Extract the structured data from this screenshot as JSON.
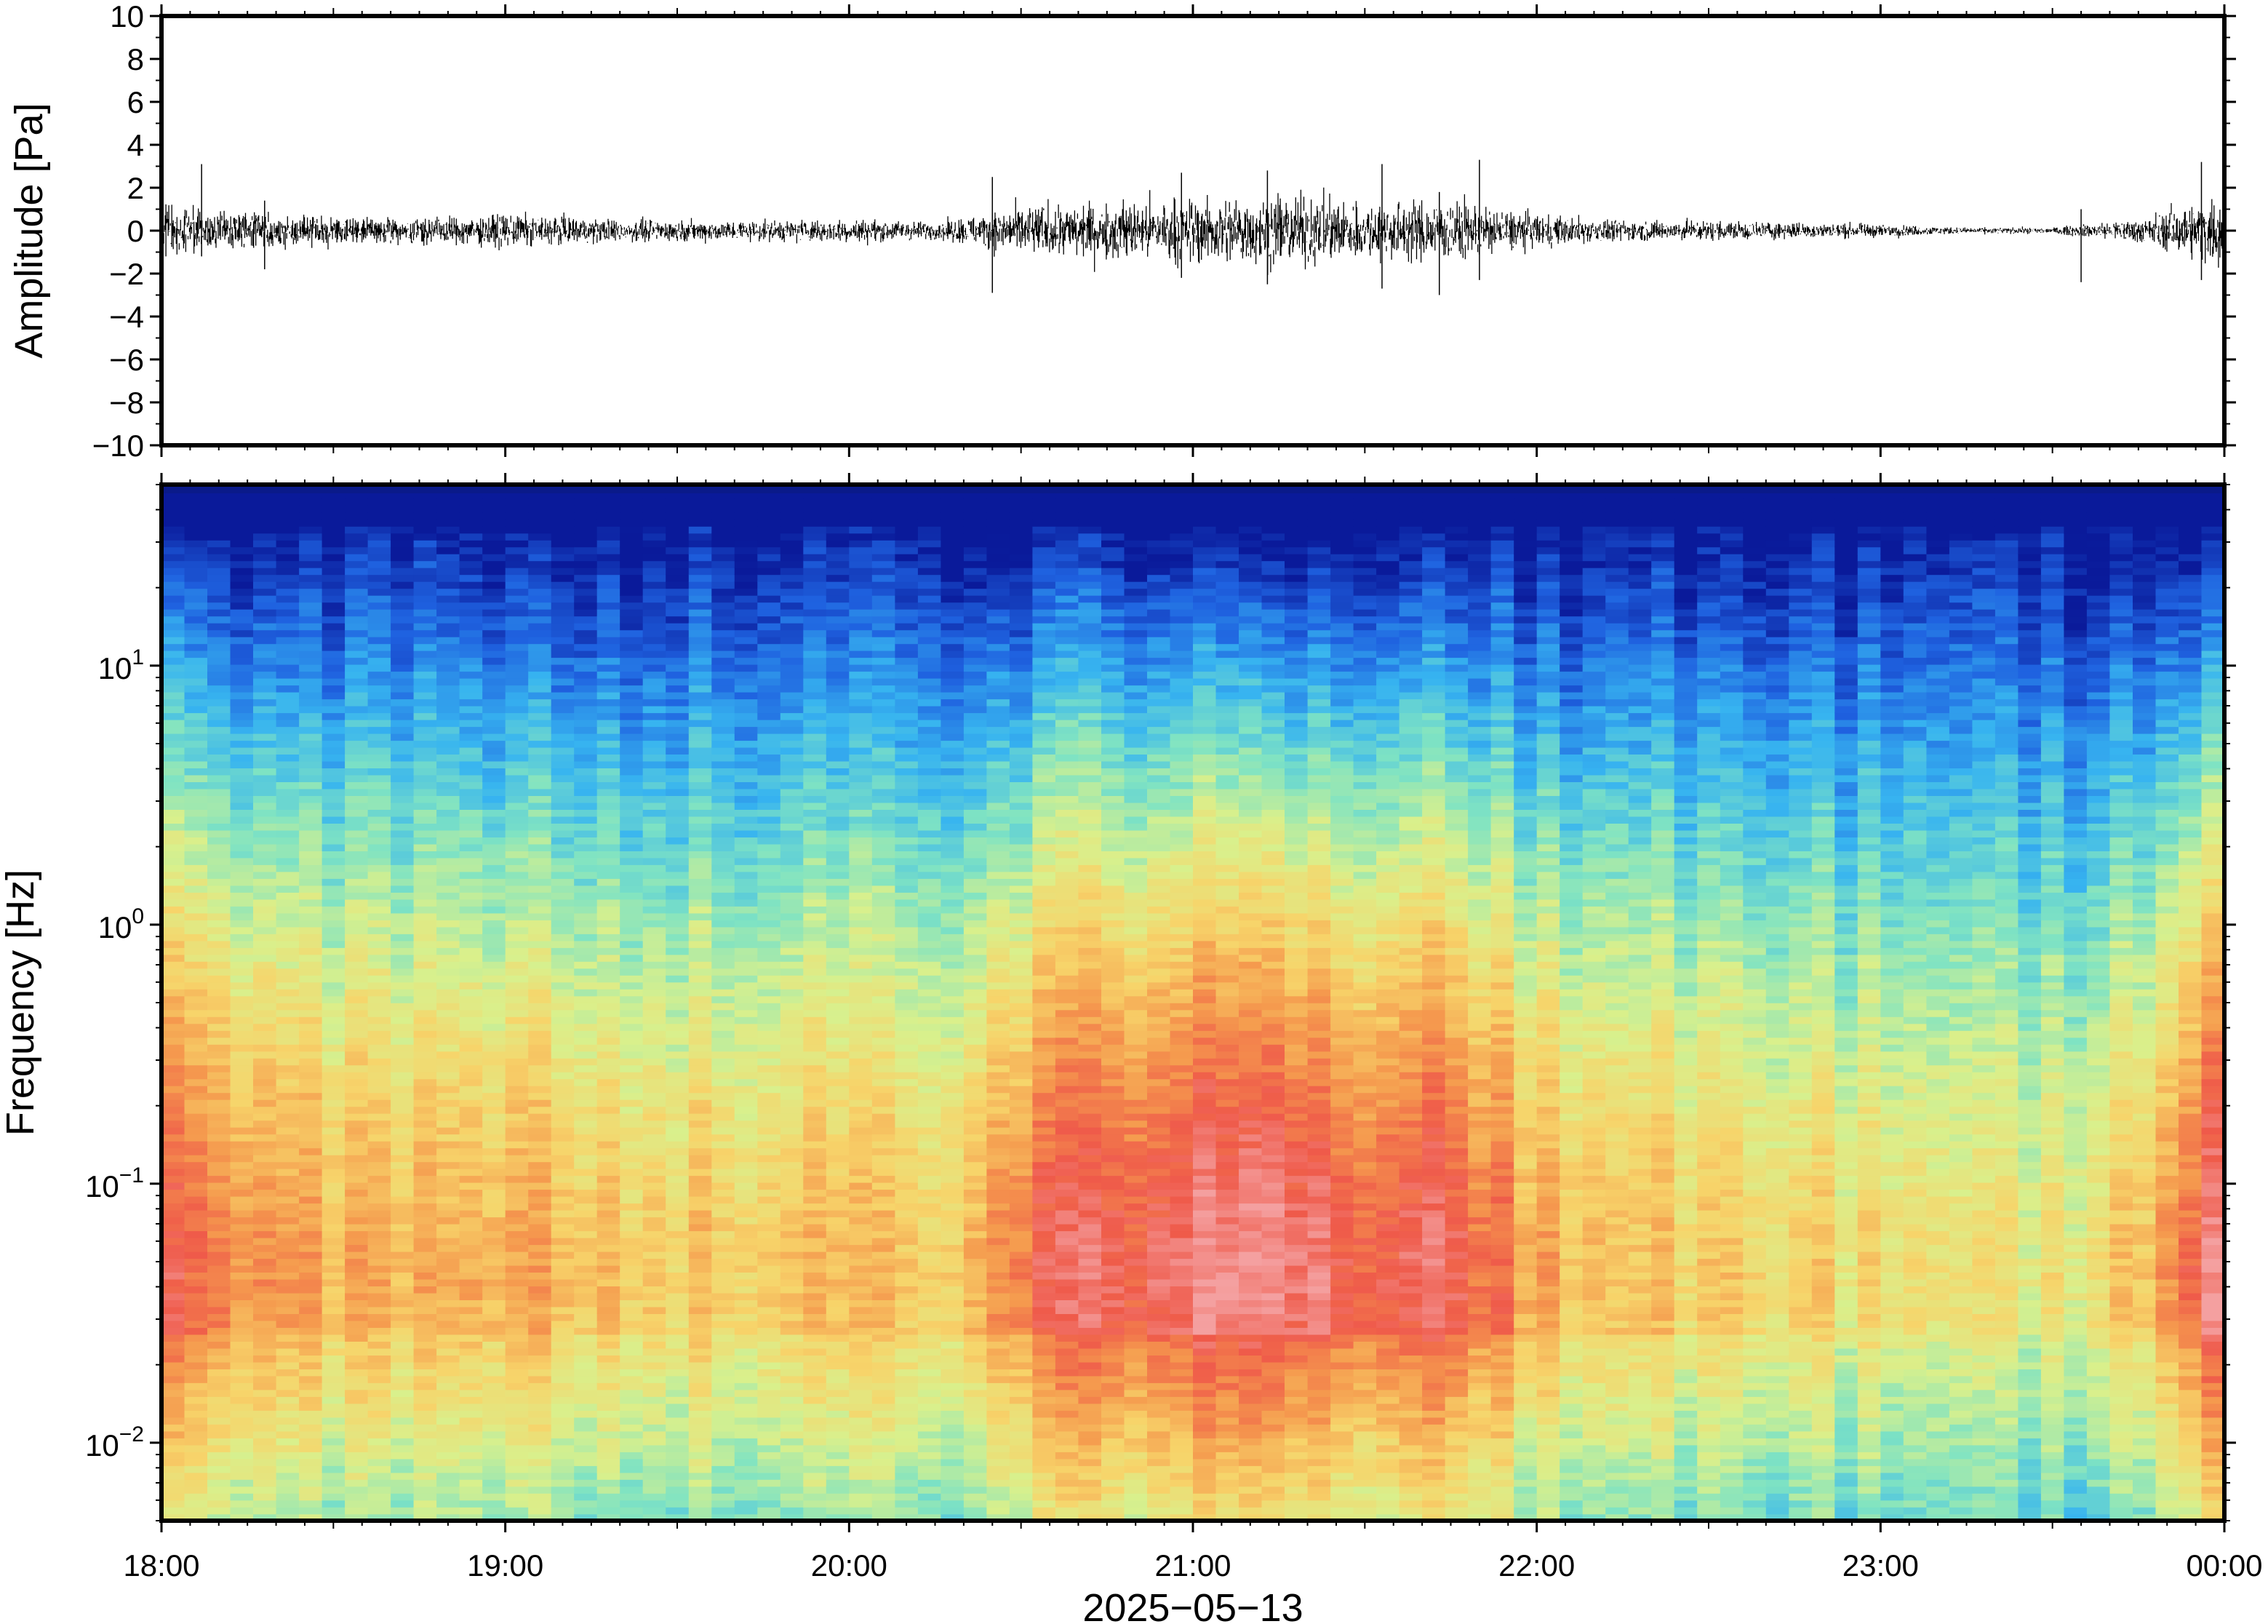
{
  "chart_data": [
    {
      "type": "line",
      "ylabel": "Amplitude [Pa]",
      "ylim": [
        -10,
        10
      ],
      "yticks": [
        10,
        8,
        6,
        4,
        2,
        0,
        -2,
        -4,
        -6,
        -8,
        -10
      ],
      "ytick_labels": [
        "10",
        "8",
        "6",
        "4",
        "2",
        "0",
        "−2",
        "−4",
        "−6",
        "−8",
        "−10"
      ],
      "xlim": [
        "2025-05-13 18:00",
        "2025-05-14 00:00"
      ],
      "grid": false,
      "envelope": {
        "description_units": "Pa",
        "time": [
          "18:00",
          "18:15",
          "18:30",
          "18:45",
          "19:00",
          "19:15",
          "19:30",
          "19:45",
          "20:00",
          "20:15",
          "20:30",
          "20:45",
          "21:00",
          "21:15",
          "21:30",
          "21:45",
          "22:00",
          "22:15",
          "22:30",
          "22:45",
          "23:00",
          "23:15",
          "23:30",
          "23:45",
          "00:00"
        ],
        "amplitude": [
          1.2,
          1.0,
          0.7,
          0.6,
          0.8,
          0.6,
          0.5,
          0.5,
          0.6,
          0.4,
          1.2,
          1.4,
          1.6,
          1.8,
          1.4,
          1.5,
          0.8,
          0.5,
          0.5,
          0.4,
          0.3,
          0.15,
          0.15,
          0.6,
          1.8
        ]
      },
      "spikes": [
        {
          "time": "18:07",
          "min": -1.2,
          "max": 3.1
        },
        {
          "time": "18:18",
          "min": -1.8,
          "max": 1.4
        },
        {
          "time": "20:25",
          "min": -2.9,
          "max": 2.5
        },
        {
          "time": "20:58",
          "min": -2.2,
          "max": 2.7
        },
        {
          "time": "21:13",
          "min": -2.5,
          "max": 2.8
        },
        {
          "time": "21:33",
          "min": -2.7,
          "max": 3.1
        },
        {
          "time": "21:43",
          "min": -3.0,
          "max": 1.8
        },
        {
          "time": "21:50",
          "min": -2.3,
          "max": 3.3
        },
        {
          "time": "23:35",
          "min": -2.4,
          "max": 1.0
        },
        {
          "time": "23:56",
          "min": -2.3,
          "max": 3.2
        }
      ]
    },
    {
      "type": "heatmap",
      "ylabel": "Frequency [Hz]",
      "xlabel": "2025−05−13",
      "yscale": "log",
      "ylim": [
        0.005,
        50
      ],
      "yticks": [
        {
          "value": 0.01,
          "base": "10",
          "exp": "−2"
        },
        {
          "value": 0.1,
          "base": "10",
          "exp": "−1"
        },
        {
          "value": 1,
          "base": "10",
          "exp": "0"
        },
        {
          "value": 10,
          "base": "10",
          "exp": "1"
        }
      ],
      "xticks": [
        "18:00",
        "19:00",
        "20:00",
        "21:00",
        "22:00",
        "23:00",
        "00:00"
      ],
      "xlim": [
        "18:00",
        "00:00"
      ],
      "colormap": [
        "#0a1a9a",
        "#1f62e0",
        "#37b4f0",
        "#7fe3c3",
        "#d9f08c",
        "#f7d46a",
        "#f59a4e",
        "#ef5a4a",
        "#f4a0a0"
      ],
      "grid": false,
      "time_bins_per_hour": 15,
      "columns": 90
    }
  ]
}
